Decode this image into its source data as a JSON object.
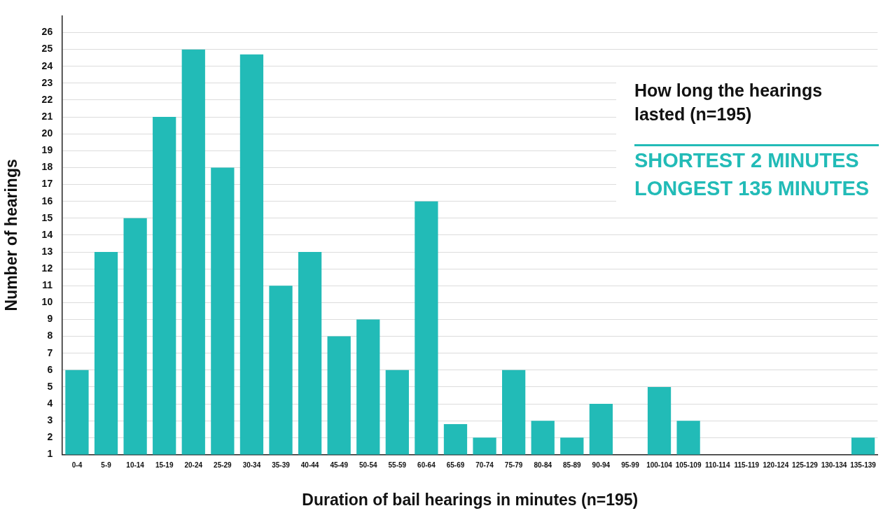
{
  "chart_data": {
    "type": "bar",
    "title": "How long the hearings lasted (n=195)",
    "xlabel": "Duration of bail hearings in minutes (n=195)",
    "ylabel": "Number of hearings",
    "annotations": [
      "SHORTEST 2 MINUTES",
      "LONGEST 135 MINUTES"
    ],
    "categories": [
      "0-4",
      "5-9",
      "10-14",
      "15-19",
      "20-24",
      "25-29",
      "30-34",
      "35-39",
      "40-44",
      "45-49",
      "50-54",
      "55-59",
      "60-64",
      "65-69",
      "70-74",
      "75-79",
      "80-84",
      "85-89",
      "90-94",
      "95-99",
      "100-104",
      "105-109",
      "110-114",
      "115-119",
      "120-124",
      "125-129",
      "130-134",
      "135-139"
    ],
    "values": [
      6,
      13,
      15,
      21,
      25,
      18,
      24.7,
      11,
      13,
      8,
      9,
      6,
      16,
      2.8,
      2,
      6,
      3,
      2,
      4,
      null,
      5,
      3,
      null,
      null,
      null,
      null,
      null,
      2
    ],
    "color": "#22bbb7",
    "ylim": [
      1,
      27
    ],
    "yticks": [
      1,
      2,
      3,
      4,
      5,
      6,
      7,
      8,
      9,
      10,
      11,
      12,
      13,
      14,
      15,
      16,
      17,
      18,
      19,
      20,
      21,
      22,
      23,
      24,
      25,
      26
    ],
    "grid": "y"
  }
}
